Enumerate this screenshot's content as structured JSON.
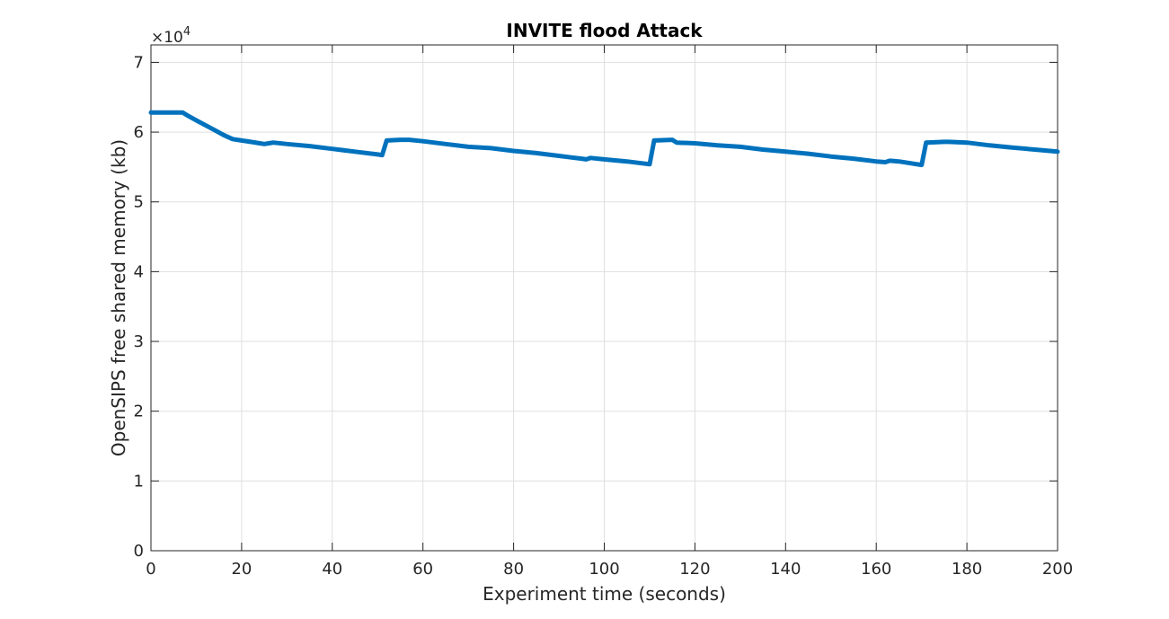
{
  "chart_data": {
    "type": "line",
    "title": "INVITE flood Attack",
    "xlabel": "Experiment time (seconds)",
    "ylabel": "OpenSIPS free shared memory (kb)",
    "y_exponent_label": "×10",
    "y_exponent_power": "4",
    "xlim": [
      0,
      200
    ],
    "ylim": [
      0,
      72500
    ],
    "x_ticks": [
      0,
      20,
      40,
      60,
      80,
      100,
      120,
      140,
      160,
      180,
      200
    ],
    "y_ticks": [
      0,
      10000,
      20000,
      30000,
      40000,
      50000,
      60000,
      70000
    ],
    "y_tick_labels": [
      "0",
      "1",
      "2",
      "3",
      "4",
      "5",
      "6",
      "7"
    ],
    "grid": true,
    "line_color": "#0072BD",
    "series": [
      {
        "x": [
          0,
          1,
          7,
          8,
          10,
          12,
          14,
          16,
          18,
          20,
          22,
          24,
          25,
          26,
          27,
          30,
          35,
          40,
          45,
          50,
          51,
          52,
          55,
          57,
          60,
          65,
          70,
          75,
          80,
          85,
          90,
          95,
          96,
          97,
          100,
          105,
          110,
          111,
          115,
          116,
          120,
          125,
          130,
          135,
          140,
          145,
          150,
          155,
          160,
          162,
          163,
          165,
          170,
          171,
          175,
          176,
          180,
          185,
          190,
          195,
          200
        ],
        "y": [
          62800,
          62800,
          62800,
          62400,
          61700,
          61000,
          60300,
          59600,
          59000,
          58800,
          58600,
          58400,
          58300,
          58400,
          58500,
          58300,
          58000,
          57600,
          57200,
          56800,
          56700,
          58800,
          58900,
          58900,
          58700,
          58300,
          57900,
          57700,
          57300,
          57000,
          56600,
          56200,
          56100,
          56300,
          56100,
          55800,
          55400,
          58800,
          58900,
          58500,
          58400,
          58100,
          57900,
          57500,
          57200,
          56900,
          56500,
          56200,
          55800,
          55700,
          55900,
          55800,
          55300,
          58500,
          58600,
          58600,
          58500,
          58100,
          57800,
          57500,
          57200
        ]
      }
    ]
  }
}
